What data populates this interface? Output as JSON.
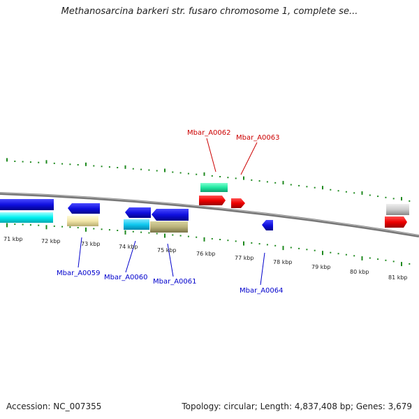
{
  "title": "Methanosarcina barkeri str. fusaro chromosome 1, complete se...",
  "footer": {
    "accession": "Accession: NC_007355",
    "summary": "Topology: circular; Length: 4,837,408 bp; Genes: 3,679"
  },
  "colors": {
    "tick_green": "#1f8a1f",
    "backbone": "#888888",
    "forward_label": "#cc0000",
    "reverse_label": "#0000cc"
  },
  "scale_labels": [
    "71 kbp",
    "72 kbp",
    "73 kbp",
    "74 kbp",
    "75 kbp",
    "76 kbp",
    "77 kbp",
    "78 kbp",
    "79 kbp",
    "80 kbp",
    "81 kbp"
  ],
  "gene_labels": [
    "Mbar_A0062",
    "Mbar_A0063",
    "Mbar_A0059",
    "Mbar_A0060",
    "Mbar_A0061",
    "Mbar_A0064"
  ]
}
